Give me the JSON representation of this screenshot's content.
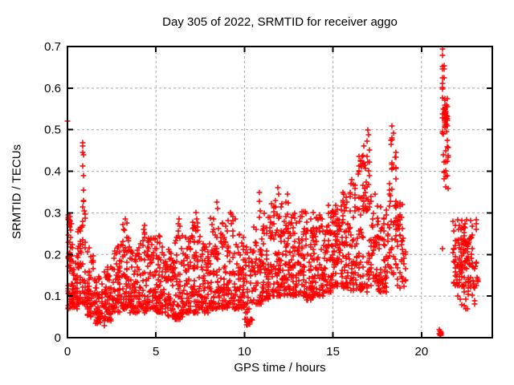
{
  "window": {
    "background": "#ffffff"
  },
  "chart_data": {
    "type": "scatter",
    "title": "Day 305 of 2022, SRMTID for receiver aggo",
    "xlabel": "GPS time / hours",
    "ylabel": "SRMTID / TECUs",
    "xlim": [
      0,
      24
    ],
    "ylim": [
      0,
      0.7
    ],
    "xticks": [
      0,
      5,
      10,
      15,
      20
    ],
    "yticks": [
      0,
      0.1,
      0.2,
      0.3,
      0.4,
      0.5,
      0.6,
      0.7
    ],
    "grid": true,
    "legend": "none",
    "marker": "plus",
    "marker_size": 7,
    "marker_color": "#ff0000",
    "grid_color": "#a8a8a8",
    "axis_color": "#000000",
    "background_color": "#ffffff",
    "prng_seed": 305,
    "point_count_estimate": 2500,
    "scatter_clusters": [
      [
        0.0,
        0.3,
        0.07,
        0.3,
        55,
        1.6
      ],
      [
        0.05,
        0.2,
        0.15,
        0.29,
        18,
        1.0
      ],
      [
        0.3,
        0.6,
        0.07,
        0.2,
        40,
        1.4
      ],
      [
        0.55,
        0.8,
        0.08,
        0.27,
        32,
        1.5
      ],
      [
        0.8,
        1.05,
        0.08,
        0.34,
        34,
        1.6
      ],
      [
        1.05,
        1.5,
        0.05,
        0.23,
        48,
        1.5
      ],
      [
        1.5,
        2.0,
        0.035,
        0.15,
        55,
        1.3
      ],
      [
        2.0,
        2.5,
        0.04,
        0.17,
        55,
        1.3
      ],
      [
        2.5,
        3.0,
        0.06,
        0.22,
        55,
        1.4
      ],
      [
        3.0,
        3.5,
        0.07,
        0.28,
        60,
        1.7
      ],
      [
        3.5,
        4.0,
        0.06,
        0.22,
        55,
        1.5
      ],
      [
        4.0,
        4.5,
        0.06,
        0.27,
        55,
        1.6
      ],
      [
        4.5,
        5.0,
        0.07,
        0.24,
        55,
        1.5
      ],
      [
        5.0,
        5.5,
        0.06,
        0.25,
        55,
        1.5
      ],
      [
        5.5,
        6.0,
        0.05,
        0.22,
        55,
        1.4
      ],
      [
        6.0,
        6.5,
        0.045,
        0.28,
        58,
        1.7
      ],
      [
        6.5,
        7.0,
        0.06,
        0.25,
        55,
        1.5
      ],
      [
        7.0,
        7.5,
        0.06,
        0.29,
        58,
        1.7
      ],
      [
        7.5,
        8.0,
        0.06,
        0.25,
        55,
        1.5
      ],
      [
        8.0,
        8.5,
        0.07,
        0.3,
        58,
        1.7
      ],
      [
        8.5,
        9.0,
        0.07,
        0.28,
        58,
        1.6
      ],
      [
        9.0,
        9.5,
        0.07,
        0.3,
        55,
        1.7
      ],
      [
        9.5,
        10.0,
        0.07,
        0.25,
        55,
        1.5
      ],
      [
        10.0,
        10.5,
        0.03,
        0.22,
        48,
        1.4
      ],
      [
        10.5,
        11.0,
        0.08,
        0.28,
        50,
        1.6
      ],
      [
        11.0,
        11.5,
        0.09,
        0.3,
        58,
        1.6
      ],
      [
        11.5,
        12.0,
        0.1,
        0.33,
        58,
        1.6
      ],
      [
        12.0,
        12.5,
        0.1,
        0.34,
        58,
        1.6
      ],
      [
        12.5,
        13.0,
        0.1,
        0.3,
        58,
        1.5
      ],
      [
        13.0,
        13.5,
        0.1,
        0.31,
        58,
        1.5
      ],
      [
        13.5,
        14.0,
        0.09,
        0.29,
        58,
        1.5
      ],
      [
        14.0,
        14.5,
        0.1,
        0.3,
        58,
        1.5
      ],
      [
        14.5,
        15.0,
        0.11,
        0.32,
        58,
        1.5
      ],
      [
        15.0,
        15.5,
        0.12,
        0.33,
        58,
        1.5
      ],
      [
        15.5,
        16.0,
        0.12,
        0.35,
        58,
        1.5
      ],
      [
        16.0,
        16.4,
        0.11,
        0.38,
        45,
        1.5
      ],
      [
        16.4,
        17.1,
        0.11,
        0.44,
        62,
        1.6
      ],
      [
        16.6,
        17.1,
        0.3,
        0.47,
        22,
        1.0
      ],
      [
        16.5,
        16.66,
        0.112,
        0.128,
        14,
        1.0
      ],
      [
        17.1,
        17.55,
        0.12,
        0.35,
        40,
        1.4
      ],
      [
        17.55,
        18.05,
        0.11,
        0.32,
        42,
        1.6
      ],
      [
        17.55,
        18.0,
        0.11,
        0.15,
        18,
        1.0
      ],
      [
        18.05,
        18.25,
        0.15,
        0.38,
        18,
        1.2
      ],
      [
        18.25,
        18.6,
        0.14,
        0.48,
        40,
        1.3
      ],
      [
        18.6,
        18.95,
        0.12,
        0.33,
        35,
        1.3
      ],
      [
        18.95,
        19.15,
        0.12,
        0.28,
        10,
        1.2
      ],
      [
        21.15,
        21.3,
        0.57,
        0.695,
        12,
        1.0
      ],
      [
        21.15,
        21.5,
        0.46,
        0.575,
        26,
        1.0
      ],
      [
        21.3,
        21.42,
        0.5,
        0.56,
        14,
        1.0
      ],
      [
        21.2,
        21.55,
        0.35,
        0.46,
        18,
        1.0
      ],
      [
        21.0,
        21.1,
        0.002,
        0.02,
        10,
        1.0
      ],
      [
        21.75,
        23.25,
        0.125,
        0.285,
        100,
        1.3
      ],
      [
        22.0,
        23.05,
        0.07,
        0.135,
        26,
        1.0
      ],
      [
        22.2,
        22.9,
        0.16,
        0.25,
        30,
        1.0
      ]
    ],
    "outlier_points": [
      [
        0.0,
        0.52
      ],
      [
        0.03,
        0.295
      ],
      [
        0.06,
        0.285
      ],
      [
        0.85,
        0.468
      ],
      [
        0.88,
        0.46
      ],
      [
        0.86,
        0.446
      ],
      [
        0.9,
        0.44
      ],
      [
        0.87,
        0.412
      ],
      [
        0.91,
        0.39
      ],
      [
        0.89,
        0.355
      ],
      [
        0.93,
        0.33
      ],
      [
        0.84,
        0.315
      ],
      [
        2.1,
        0.028
      ],
      [
        3.25,
        0.285
      ],
      [
        4.35,
        0.27
      ],
      [
        6.3,
        0.285
      ],
      [
        7.25,
        0.3
      ],
      [
        7.3,
        0.285
      ],
      [
        8.45,
        0.325
      ],
      [
        8.5,
        0.31
      ],
      [
        9.2,
        0.3
      ],
      [
        10.3,
        0.032
      ],
      [
        10.85,
        0.35
      ],
      [
        10.85,
        0.328
      ],
      [
        10.87,
        0.305
      ],
      [
        10.83,
        0.29
      ],
      [
        11.9,
        0.36
      ],
      [
        11.93,
        0.345
      ],
      [
        12.45,
        0.345
      ],
      [
        13.9,
        0.3
      ],
      [
        15.6,
        0.345
      ],
      [
        15.95,
        0.35
      ],
      [
        16.95,
        0.5
      ],
      [
        17.0,
        0.488
      ],
      [
        16.9,
        0.473
      ],
      [
        18.35,
        0.51
      ],
      [
        18.4,
        0.492
      ],
      [
        18.3,
        0.475
      ],
      [
        21.2,
        0.215
      ]
    ]
  }
}
